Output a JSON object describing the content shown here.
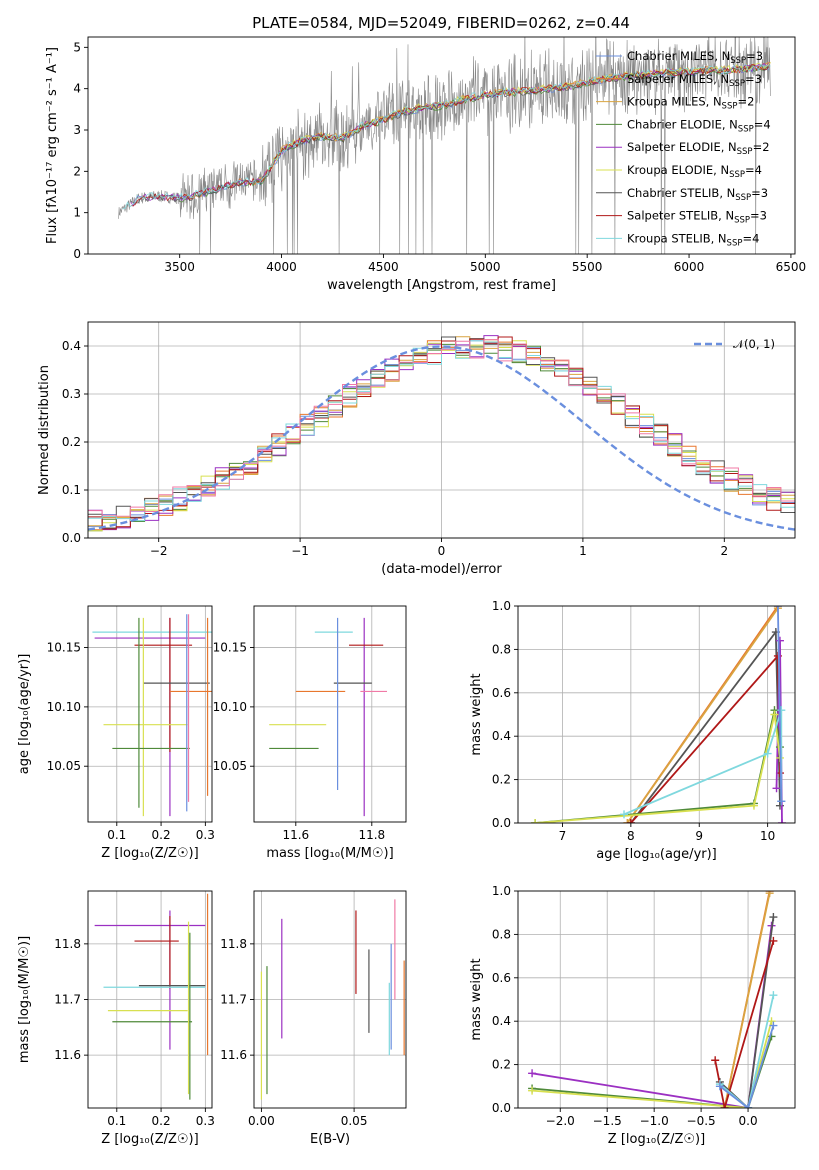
{
  "figure_title": "PLATE=0584, MJD=52049, FIBERID=0262, z=0.44",
  "colors": {
    "chabrier_miles": "#6a8fde",
    "salpeter_miles": "#e8772e",
    "kroupa_miles": "#d9a441",
    "chabrier_elodie": "#4f8a3a",
    "salpeter_elodie": "#9b30c2",
    "kroupa_elodie": "#d8e050",
    "chabrier_stelib": "#555555",
    "salpeter_stelib": "#b01818",
    "kroupa_stelib": "#7fd8de",
    "pink": "#f07aa6",
    "data": "#888888",
    "normal": "#6a8fde"
  },
  "chart_data": [
    {
      "id": "spectrum",
      "type": "line",
      "xlabel": "wavelength [Angstrom, rest frame]",
      "ylabel": "Flux [fλ10⁻¹⁷ erg cm⁻² s⁻¹ A⁻¹]",
      "xlim": [
        3050,
        6520
      ],
      "ylim": [
        0,
        5.25
      ],
      "xticks": [
        3500,
        4000,
        4500,
        5000,
        5500,
        6000,
        6500
      ],
      "yticks": [
        0,
        1,
        2,
        3,
        4,
        5
      ],
      "grid": false,
      "legend_placement": "right",
      "data_series_x_range": [
        3200,
        6400
      ],
      "model_profile": {
        "x": [
          3200,
          3300,
          3400,
          3500,
          3600,
          3700,
          3800,
          3900,
          4000,
          4100,
          4200,
          4300,
          4400,
          4500,
          4600,
          4700,
          4800,
          4900,
          5000,
          5100,
          5200,
          5300,
          5400,
          5500,
          5600,
          5700,
          5800,
          5900,
          6000,
          6100,
          6200,
          6300,
          6400
        ],
        "y": [
          1.0,
          1.35,
          1.4,
          1.35,
          1.45,
          1.6,
          1.75,
          1.75,
          2.5,
          2.75,
          2.85,
          2.8,
          3.1,
          3.25,
          3.45,
          3.55,
          3.6,
          3.75,
          3.85,
          3.9,
          3.95,
          4.0,
          4.05,
          4.15,
          4.25,
          4.3,
          4.35,
          4.4,
          4.4,
          4.45,
          4.45,
          4.5,
          4.55
        ]
      },
      "legend": [
        {
          "label": "Chabrier MILES, N",
          "sub": "SSP",
          "suffix": "=3",
          "color": "#6a8fde"
        },
        {
          "label": "Salpeter MILES, N",
          "sub": "SSP",
          "suffix": "=3",
          "color": "#e8772e"
        },
        {
          "label": "Kroupa MILES, N",
          "sub": "SSP",
          "suffix": "=2",
          "color": "#d9a441"
        },
        {
          "label": "Chabrier ELODIE, N",
          "sub": "SSP",
          "suffix": "=4",
          "color": "#4f8a3a"
        },
        {
          "label": "Salpeter ELODIE, N",
          "sub": "SSP",
          "suffix": "=2",
          "color": "#9b30c2"
        },
        {
          "label": "Kroupa ELODIE, N",
          "sub": "SSP",
          "suffix": "=4",
          "color": "#d8e050"
        },
        {
          "label": "Chabrier STELIB, N",
          "sub": "SSP",
          "suffix": "=3",
          "color": "#555555"
        },
        {
          "label": "Salpeter STELIB, N",
          "sub": "SSP",
          "suffix": "=3",
          "color": "#b01818"
        },
        {
          "label": "Kroupa STELIB, N",
          "sub": "SSP",
          "suffix": "=4",
          "color": "#7fd8de"
        }
      ]
    },
    {
      "id": "residuals",
      "type": "line",
      "xlabel": "(data-model)/error",
      "ylabel": "Normed distribution",
      "xlim": [
        -2.5,
        2.5
      ],
      "ylim": [
        0,
        0.45
      ],
      "xticks": [
        -2,
        -1,
        0,
        1,
        2
      ],
      "yticks": [
        0.0,
        0.1,
        0.2,
        0.3,
        0.4
      ],
      "grid": true,
      "legend": [
        {
          "label": "𝒩(0, 1)",
          "color": "#6a8fde",
          "style": "dashed"
        }
      ],
      "legend_placement": "top-right",
      "bin_width": 0.1
    },
    {
      "id": "age-vs-Z",
      "type": "scatter",
      "xlabel": "Z [log₁₀(Z/Z☉)]",
      "ylabel": "age  [log₁₀(age/yr)]",
      "xlim": [
        0.035,
        0.315
      ],
      "ylim": [
        10.003,
        10.185
      ],
      "xticks": [
        0.1,
        0.2,
        0.3
      ],
      "yticks": [
        10.05,
        10.1,
        10.15
      ],
      "ytick_labels": [
        "10.05",
        "10.10",
        "10.15"
      ],
      "grid": true,
      "points": [
        {
          "x": 0.275,
          "y": 10.163,
          "xerr": 0.23,
          "yerr": 0.0,
          "color": "#7fd8de"
        },
        {
          "x": 0.23,
          "y": 10.158,
          "xerr": 0.0,
          "yerr": 0.0,
          "color": "#9b30c2",
          "xlo": 0.05,
          "xhi": 0.3
        },
        {
          "x": 0.22,
          "y": 10.158,
          "yerr_lo": 10.008,
          "yerr_hi": 10.175,
          "color": "#9b30c2"
        },
        {
          "x": 0.22,
          "y": 10.152,
          "xlo": 0.14,
          "xhi": 0.27,
          "ylo": 10.062,
          "yhi": 10.175,
          "color": "#b01818"
        },
        {
          "x": 0.24,
          "y": 10.12,
          "xlo": 0.16,
          "xhi": 0.31,
          "color": "#555555"
        },
        {
          "x": 0.27,
          "y": 10.113,
          "xlo": 0.22,
          "xhi": 0.315,
          "color": "#e8772e"
        },
        {
          "x": 0.16,
          "y": 10.085,
          "xlo": 0.07,
          "xhi": 0.26,
          "ylo": 10.008,
          "yhi": 10.175,
          "color": "#d8e050"
        },
        {
          "x": 0.15,
          "y": 10.065,
          "xlo": 0.09,
          "xhi": 0.265,
          "ylo": 10.015,
          "yhi": 10.175,
          "color": "#4f8a3a"
        },
        {
          "x": 0.258,
          "y": 10.16,
          "ylo": 10.012,
          "yhi": 10.178,
          "color": "#6a8fde"
        },
        {
          "x": 0.262,
          "y": 10.163,
          "ylo": 10.02,
          "yhi": 10.178,
          "color": "#f07aa6"
        },
        {
          "x": 0.305,
          "y": 10.14,
          "ylo": 10.025,
          "yhi": 10.175,
          "color": "#e8772e"
        }
      ]
    },
    {
      "id": "age-vs-mass",
      "type": "scatter",
      "xlabel": "mass [log₁₀(M/M☉)]",
      "ylabel": "",
      "xlim": [
        11.49,
        11.89
      ],
      "ylim": [
        10.003,
        10.185
      ],
      "xticks": [
        11.6,
        11.8
      ],
      "xtick_labels": [
        "11.6",
        "11.8"
      ],
      "yticks": [
        10.05,
        10.1,
        10.15
      ],
      "ytick_labels": [
        "10.05",
        "10.10",
        "10.15"
      ],
      "grid": true,
      "points": [
        {
          "x": 11.7,
          "y": 10.163,
          "xlo": 11.65,
          "xhi": 11.75,
          "color": "#7fd8de"
        },
        {
          "x": 11.78,
          "y": 10.158,
          "ylo": 10.008,
          "yhi": 10.175,
          "color": "#9b30c2"
        },
        {
          "x": 11.79,
          "y": 10.152,
          "xlo": 11.74,
          "xhi": 11.83,
          "color": "#b01818"
        },
        {
          "x": 11.75,
          "y": 10.12,
          "xlo": 11.7,
          "xhi": 11.8,
          "color": "#555555"
        },
        {
          "x": 11.67,
          "y": 10.113,
          "xlo": 11.6,
          "xhi": 11.73,
          "color": "#e8772e"
        },
        {
          "x": 11.64,
          "y": 10.085,
          "xlo": 11.53,
          "xhi": 11.68,
          "color": "#d8e050"
        },
        {
          "x": 11.62,
          "y": 10.065,
          "xlo": 11.53,
          "xhi": 11.66,
          "color": "#4f8a3a"
        },
        {
          "x": 11.71,
          "y": 10.16,
          "ylo": 10.03,
          "yhi": 10.175,
          "color": "#6a8fde"
        },
        {
          "x": 11.8,
          "y": 10.113,
          "xlo": 11.77,
          "xhi": 11.84,
          "color": "#f07aa6"
        }
      ]
    },
    {
      "id": "massweight-vs-age",
      "type": "line",
      "xlabel": "age  [log₁₀(age/yr)]",
      "ylabel": "mass weight",
      "xlim": [
        6.35,
        10.4
      ],
      "ylim": [
        0,
        1.0
      ],
      "xticks": [
        7,
        8,
        9,
        10
      ],
      "yticks": [
        0.0,
        0.2,
        0.4,
        0.6,
        0.8,
        1.0
      ],
      "grid": true,
      "series": [
        {
          "color": "#e8772e",
          "x": [
            7.95,
            10.15
          ],
          "y": [
            0.0,
            1.0
          ]
        },
        {
          "color": "#d9a441",
          "x": [
            7.95,
            10.15
          ],
          "y": [
            0.0,
            0.99
          ]
        },
        {
          "color": "#555555",
          "x": [
            8.0,
            10.12,
            10.18
          ],
          "y": [
            0.0,
            0.88,
            0.08
          ]
        },
        {
          "color": "#b01818",
          "x": [
            8.0,
            10.15,
            10.18
          ],
          "y": [
            0.0,
            0.77,
            0.23
          ]
        },
        {
          "color": "#9b30c2",
          "x": [
            10.13,
            10.18,
            10.21
          ],
          "y": [
            0.16,
            0.84,
            0.0
          ]
        },
        {
          "color": "#4f8a3a",
          "x": [
            6.6,
            9.8,
            10.1,
            10.18
          ],
          "y": [
            0.0,
            0.09,
            0.52,
            0.35
          ]
        },
        {
          "color": "#d8e050",
          "x": [
            6.6,
            9.8,
            10.1,
            10.18
          ],
          "y": [
            0.0,
            0.08,
            0.5,
            0.3
          ]
        },
        {
          "color": "#7fd8de",
          "x": [
            7.9,
            10.0,
            10.2,
            10.2
          ],
          "y": [
            0.04,
            0.32,
            0.52,
            0.1
          ]
        },
        {
          "color": "#6a8fde",
          "x": [
            10.15,
            10.2
          ],
          "y": [
            1.0,
            0.1
          ]
        }
      ]
    },
    {
      "id": "mass-vs-Z",
      "type": "scatter",
      "xlabel": "Z [log₁₀(Z/Z☉)]",
      "ylabel": "mass [log₁₀(M/M☉)]",
      "xlim": [
        0.035,
        0.315
      ],
      "ylim": [
        11.505,
        11.895
      ],
      "xticks": [
        0.1,
        0.2,
        0.3
      ],
      "yticks": [
        11.6,
        11.7,
        11.8
      ],
      "ytick_labels": [
        "11.6",
        "11.7",
        "11.8"
      ],
      "grid": true,
      "points": [
        {
          "x": 0.22,
          "y": 11.833,
          "xlo": 0.05,
          "xhi": 0.3,
          "ylo": 11.61,
          "yhi": 11.86,
          "color": "#9b30c2"
        },
        {
          "x": 0.22,
          "y": 11.805,
          "xlo": 0.14,
          "xhi": 0.24,
          "ylo": 11.72,
          "yhi": 11.85,
          "color": "#b01818"
        },
        {
          "x": 0.27,
          "y": 11.725,
          "xlo": 0.15,
          "xhi": 0.3,
          "color": "#555555"
        },
        {
          "x": 0.27,
          "y": 11.722,
          "xlo": 0.07,
          "xhi": 0.3,
          "color": "#7fd8de"
        },
        {
          "x": 0.17,
          "y": 11.68,
          "xlo": 0.08,
          "xhi": 0.26,
          "color": "#d8e050"
        },
        {
          "x": 0.2,
          "y": 11.66,
          "xlo": 0.09,
          "xhi": 0.27,
          "color": "#4f8a3a"
        },
        {
          "x": 0.262,
          "y": 11.7,
          "ylo": 11.53,
          "yhi": 11.84,
          "color": "#d8e050"
        },
        {
          "x": 0.265,
          "y": 11.68,
          "ylo": 11.52,
          "yhi": 11.82,
          "color": "#4f8a3a"
        },
        {
          "x": 0.305,
          "y": 11.72,
          "ylo": 11.6,
          "yhi": 11.89,
          "color": "#e8772e"
        }
      ]
    },
    {
      "id": "mass-vs-ebv",
      "type": "scatter",
      "xlabel": "E(B-V)",
      "ylabel": "",
      "xlim": [
        -0.004,
        0.078
      ],
      "ylim": [
        11.505,
        11.895
      ],
      "xticks": [
        0.0,
        0.05
      ],
      "xtick_labels": [
        "0.00",
        "0.05"
      ],
      "yticks": [
        11.6,
        11.7,
        11.8
      ],
      "ytick_labels": [
        "11.6",
        "11.7",
        "11.8"
      ],
      "grid": true,
      "points": [
        {
          "x": 0.0,
          "ylo": 11.52,
          "yhi": 11.75,
          "color": "#d8e050"
        },
        {
          "x": 0.003,
          "ylo": 11.53,
          "yhi": 11.76,
          "color": "#4f8a3a"
        },
        {
          "x": 0.011,
          "ylo": 11.63,
          "yhi": 11.845,
          "color": "#9b30c2"
        },
        {
          "x": 0.051,
          "ylo": 11.71,
          "yhi": 11.86,
          "color": "#b01818"
        },
        {
          "x": 0.058,
          "ylo": 11.64,
          "yhi": 11.79,
          "color": "#555555"
        },
        {
          "x": 0.07,
          "ylo": 11.61,
          "yhi": 11.8,
          "color": "#6a8fde"
        },
        {
          "x": 0.069,
          "ylo": 11.6,
          "yhi": 11.73,
          "color": "#7fd8de"
        },
        {
          "x": 0.072,
          "ylo": 11.7,
          "yhi": 11.88,
          "color": "#f07aa6"
        },
        {
          "x": 0.077,
          "ylo": 11.6,
          "yhi": 11.77,
          "color": "#e8772e"
        }
      ]
    },
    {
      "id": "massweight-vs-Z",
      "type": "line",
      "xlabel": "Z [log₁₀(Z/Z☉)]",
      "ylabel": "mass weight",
      "xlim": [
        -2.45,
        0.5
      ],
      "ylim": [
        0,
        1.0
      ],
      "xticks": [
        -2.0,
        -1.5,
        -1.0,
        -0.5,
        0.0
      ],
      "xtick_labels": [
        "−2.0",
        "−1.5",
        "−1.0",
        "−0.5",
        "0.0"
      ],
      "yticks": [
        0.0,
        0.2,
        0.4,
        0.6,
        0.8,
        1.0
      ],
      "grid": true,
      "series": [
        {
          "color": "#9b30c2",
          "x": [
            -2.3,
            0.0,
            0.25
          ],
          "y": [
            0.16,
            0.0,
            0.84
          ]
        },
        {
          "color": "#4f8a3a",
          "x": [
            -2.3,
            0.0,
            0.25
          ],
          "y": [
            0.09,
            0.0,
            0.33
          ]
        },
        {
          "color": "#d8e050",
          "x": [
            -2.3,
            0.0,
            0.25
          ],
          "y": [
            0.08,
            0.0,
            0.4
          ]
        },
        {
          "color": "#e8772e",
          "x": [
            -0.25,
            0.23
          ],
          "y": [
            0.0,
            1.0
          ]
        },
        {
          "color": "#d9a441",
          "x": [
            -0.25,
            0.23
          ],
          "y": [
            0.0,
            0.99
          ]
        },
        {
          "color": "#555555",
          "x": [
            -0.3,
            0.0,
            0.27
          ],
          "y": [
            0.12,
            0.0,
            0.88
          ]
        },
        {
          "color": "#b01818",
          "x": [
            -0.35,
            -0.25,
            0.27
          ],
          "y": [
            0.22,
            0.0,
            0.77
          ]
        },
        {
          "color": "#7fd8de",
          "x": [
            -0.3,
            0.0,
            0.27
          ],
          "y": [
            0.11,
            0.0,
            0.52
          ]
        },
        {
          "color": "#6a8fde",
          "x": [
            -0.3,
            0.0,
            0.27
          ],
          "y": [
            0.1,
            0.0,
            0.38
          ]
        }
      ]
    }
  ]
}
